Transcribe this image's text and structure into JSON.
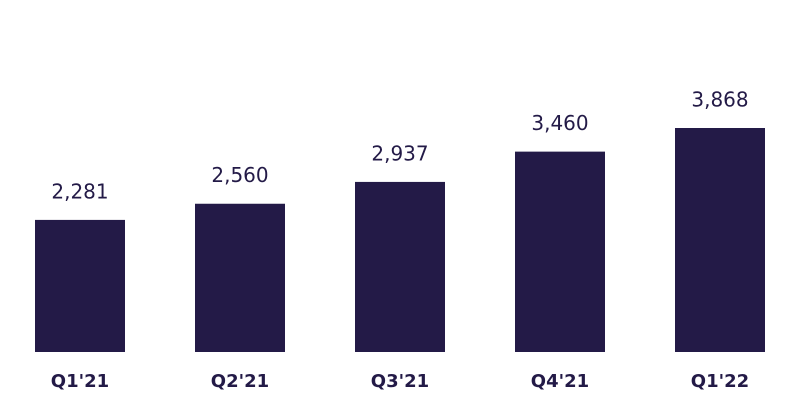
{
  "chart_data": {
    "type": "bar",
    "categories": [
      "Q1'21",
      "Q2'21",
      "Q3'21",
      "Q4'21",
      "Q1'22"
    ],
    "values": [
      2281,
      2560,
      2937,
      3460,
      3868
    ],
    "value_labels": [
      "2,281",
      "2,560",
      "2,937",
      "3,460",
      "3,868"
    ],
    "color": "#231a47"
  }
}
